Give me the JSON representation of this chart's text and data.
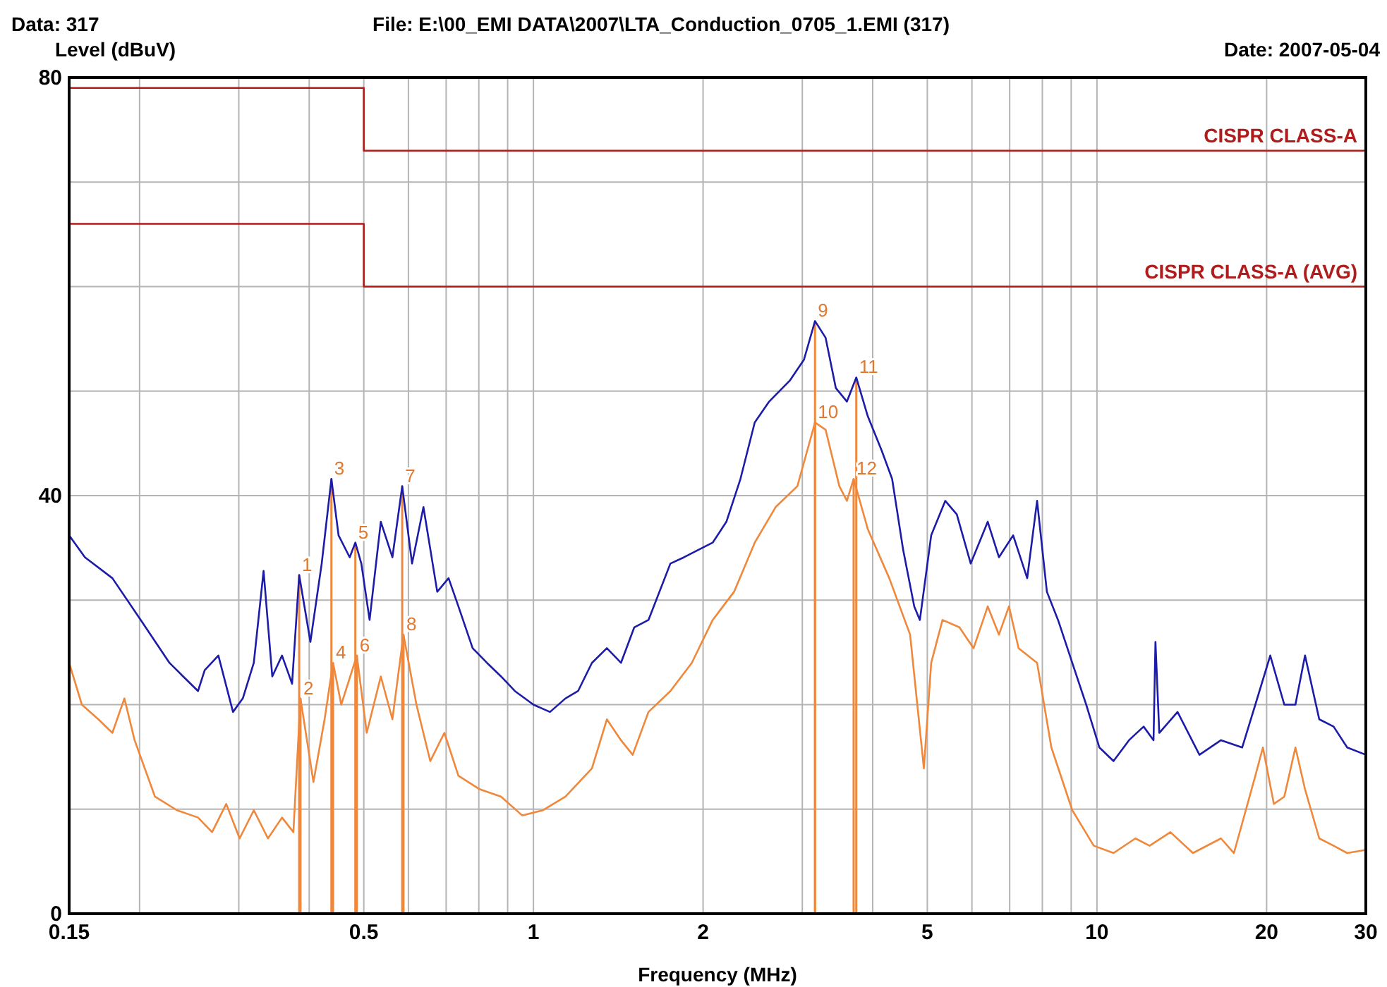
{
  "chart_data": {
    "type": "line",
    "title": "File: E:\\00_EMI DATA\\2007\\LTA_Conduction_0705_1.EMI  (317)",
    "xlabel": "Frequency (MHz)",
    "ylabel": "Level (dBuV)",
    "log": "x",
    "grid": true,
    "legend": false,
    "marker": "none",
    "line_style": "solid",
    "xlim": [
      0.15,
      30
    ],
    "ylim": [
      0,
      80
    ],
    "xticks": [
      0.15,
      {
        "value": 0.2,
        "label": null
      },
      {
        "value": 0.3,
        "label": null
      },
      {
        "value": 0.4,
        "label": null
      },
      0.5,
      {
        "value": 0.6,
        "label": null
      },
      {
        "value": 0.7,
        "label": null
      },
      {
        "value": 0.8,
        "label": null
      },
      {
        "value": 0.9,
        "label": null
      },
      1,
      2,
      {
        "value": 3,
        "label": null
      },
      {
        "value": 4,
        "label": null
      },
      5,
      {
        "value": 6,
        "label": null
      },
      {
        "value": 7,
        "label": null
      },
      {
        "value": 8,
        "label": null
      },
      {
        "value": 9,
        "label": null
      },
      10,
      20,
      30
    ],
    "yticks": [
      0,
      {
        "value": 10,
        "label": null
      },
      {
        "value": 20,
        "label": null
      },
      {
        "value": 30,
        "label": null
      },
      40,
      {
        "value": 50,
        "label": null
      },
      {
        "value": 60,
        "label": null
      },
      {
        "value": 70,
        "label": null
      },
      80
    ],
    "series": [
      {
        "name": "CISPR CLASS-A",
        "color": "#b01c1c",
        "x": [
          0.15,
          0.5,
          0.5,
          30
        ],
        "values": [
          79,
          79,
          73,
          73
        ]
      },
      {
        "name": "CISPR CLASS-A (AVG)",
        "color": "#b01c1c",
        "x": [
          0.15,
          0.5,
          0.5,
          30
        ],
        "values": [
          66,
          66,
          60,
          60
        ]
      },
      {
        "color": "#1c1ca8",
        "x": [
          0.15,
          0.16,
          0.179,
          0.201,
          0.226,
          0.239,
          0.254,
          0.261,
          0.276,
          0.293,
          0.305,
          0.319,
          0.332,
          0.344,
          0.358,
          0.373,
          0.384,
          0.402,
          0.421,
          0.438,
          0.451,
          0.472,
          0.483,
          0.495,
          0.512,
          0.536,
          0.562,
          0.585,
          0.609,
          0.638,
          0.675,
          0.707,
          0.736,
          0.78,
          0.827,
          0.876,
          0.927,
          1.0,
          1.07,
          1.14,
          1.2,
          1.27,
          1.35,
          1.43,
          1.51,
          1.6,
          1.75,
          1.85,
          1.96,
          2.08,
          2.2,
          2.33,
          2.47,
          2.62,
          2.85,
          3.02,
          3.16,
          3.3,
          3.44,
          3.6,
          3.74,
          3.92,
          4.15,
          4.33,
          4.53,
          4.74,
          4.85,
          5.08,
          5.38,
          5.64,
          5.97,
          6.4,
          6.7,
          7.1,
          7.52,
          7.83,
          8.15,
          8.53,
          9.04,
          9.57,
          10.1,
          10.7,
          11.4,
          12.1,
          12.6,
          12.7,
          12.9,
          13.9,
          15.2,
          16.6,
          18.1,
          19.1,
          20.3,
          21.5,
          22.5,
          23.4,
          24.8,
          26.3,
          27.8,
          30.0
        ],
        "values": [
          36.2,
          34.1,
          32.1,
          28.1,
          24.0,
          22.7,
          21.3,
          23.3,
          24.7,
          19.3,
          20.6,
          24.0,
          32.8,
          22.7,
          24.7,
          22.0,
          32.4,
          26.0,
          33.5,
          41.6,
          36.2,
          34.1,
          35.5,
          33.5,
          28.1,
          37.5,
          34.1,
          40.9,
          33.5,
          38.9,
          30.8,
          32.1,
          29.4,
          25.4,
          24.0,
          22.7,
          21.3,
          20.0,
          19.3,
          20.6,
          21.3,
          24.0,
          25.4,
          24.0,
          27.4,
          28.1,
          33.5,
          34.1,
          34.8,
          35.5,
          37.5,
          41.6,
          47.0,
          49.0,
          51.0,
          53.0,
          56.7,
          55.1,
          50.3,
          49.0,
          51.3,
          47.6,
          44.3,
          41.6,
          34.8,
          29.4,
          28.1,
          36.2,
          39.5,
          38.2,
          33.5,
          37.5,
          34.1,
          36.2,
          32.1,
          39.5,
          30.8,
          28.1,
          24.0,
          20.0,
          15.9,
          14.6,
          16.6,
          17.9,
          16.6,
          26.0,
          17.3,
          19.3,
          15.2,
          16.6,
          15.9,
          20.0,
          24.7,
          20.0,
          20.0,
          24.7,
          18.6,
          17.9,
          15.9,
          15.2
        ]
      },
      {
        "color": "#f0883c",
        "x": [
          0.15,
          0.158,
          0.169,
          0.179,
          0.188,
          0.196,
          0.213,
          0.233,
          0.254,
          0.269,
          0.285,
          0.301,
          0.319,
          0.338,
          0.358,
          0.375,
          0.386,
          0.407,
          0.426,
          0.441,
          0.456,
          0.486,
          0.506,
          0.536,
          0.562,
          0.588,
          0.62,
          0.656,
          0.695,
          0.736,
          0.803,
          0.876,
          0.955,
          1.04,
          1.14,
          1.27,
          1.35,
          1.43,
          1.5,
          1.6,
          1.75,
          1.91,
          2.08,
          2.27,
          2.47,
          2.69,
          2.94,
          3.16,
          3.3,
          3.49,
          3.6,
          3.7,
          3.92,
          4.28,
          4.66,
          4.93,
          5.08,
          5.32,
          5.7,
          6.04,
          6.4,
          6.7,
          6.98,
          7.26,
          7.83,
          8.3,
          9.04,
          9.87,
          10.7,
          11.7,
          12.4,
          13.5,
          14.8,
          16.6,
          17.5,
          19.1,
          19.7,
          20.6,
          21.5,
          22.5,
          23.4,
          24.8,
          26.3,
          27.8,
          30.0
        ],
        "values": [
          24.0,
          20.0,
          18.6,
          17.3,
          20.6,
          16.6,
          11.2,
          9.9,
          9.2,
          7.8,
          10.5,
          7.2,
          9.9,
          7.2,
          9.2,
          7.8,
          20.6,
          12.6,
          18.6,
          24.0,
          20.0,
          24.7,
          17.3,
          22.7,
          18.6,
          26.7,
          20.0,
          14.6,
          17.3,
          13.2,
          11.9,
          11.2,
          9.4,
          9.9,
          11.2,
          13.9,
          18.6,
          16.6,
          15.2,
          19.3,
          21.3,
          24.0,
          28.1,
          30.8,
          35.5,
          38.9,
          40.9,
          47.0,
          46.3,
          40.9,
          39.5,
          41.6,
          36.8,
          32.1,
          26.7,
          13.9,
          24.0,
          28.1,
          27.4,
          25.4,
          29.4,
          26.7,
          29.4,
          25.4,
          24.0,
          15.9,
          9.9,
          6.5,
          5.8,
          7.2,
          6.5,
          7.8,
          5.8,
          7.2,
          5.8,
          13.2,
          15.9,
          10.5,
          11.2,
          15.9,
          11.9,
          7.2,
          6.5,
          5.8,
          6.1
        ]
      }
    ],
    "annotations": [
      "Data: 317",
      "Date: 2007-05-04",
      {
        "text": "1",
        "x": 0.384,
        "y": 32.4
      },
      {
        "text": "2",
        "x": 0.386,
        "y": 20.6
      },
      {
        "text": "3",
        "x": 0.438,
        "y": 41.6
      },
      {
        "text": "4",
        "x": 0.441,
        "y": 24.0
      },
      {
        "text": "5",
        "x": 0.483,
        "y": 35.5
      },
      {
        "text": "6",
        "x": 0.486,
        "y": 24.7
      },
      {
        "text": "7",
        "x": 0.585,
        "y": 40.9
      },
      {
        "text": "8",
        "x": 0.588,
        "y": 26.7
      },
      {
        "text": "9",
        "x": 3.16,
        "y": 56.7
      },
      {
        "text": "10",
        "x": 3.16,
        "y": 47.0
      },
      {
        "text": "11",
        "x": 3.74,
        "y": 51.3
      },
      {
        "text": "12",
        "x": 3.7,
        "y": 41.6
      }
    ]
  }
}
